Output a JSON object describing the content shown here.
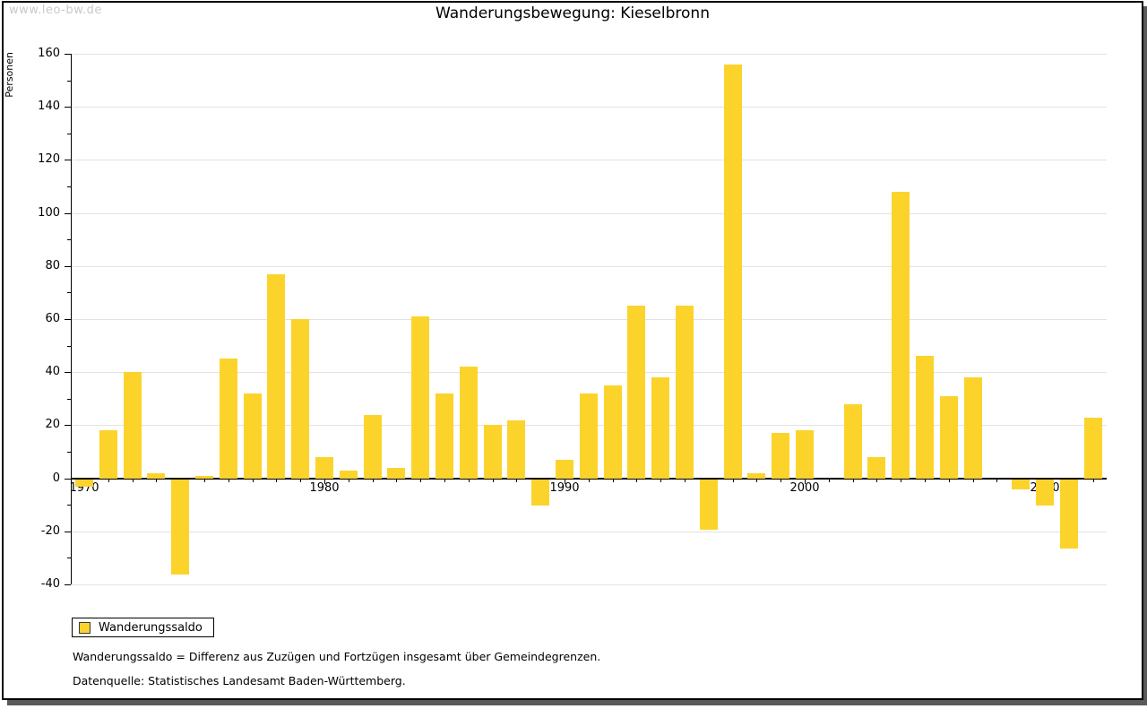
{
  "page": {
    "watermark": "www.leo-bw.de"
  },
  "chart_data": {
    "type": "bar",
    "title": "Wanderungsbewegung: Kieselbronn",
    "xlabel": "",
    "ylabel": "Personen",
    "series_name": "Wanderungssaldo",
    "x": [
      1970,
      1971,
      1972,
      1973,
      1974,
      1975,
      1976,
      1977,
      1978,
      1979,
      1980,
      1981,
      1982,
      1983,
      1984,
      1985,
      1986,
      1987,
      1988,
      1989,
      1990,
      1991,
      1992,
      1993,
      1994,
      1995,
      1996,
      1997,
      1998,
      1999,
      2000,
      2001,
      2002,
      2003,
      2004,
      2005,
      2006,
      2007,
      2008,
      2009,
      2010,
      2011,
      2012
    ],
    "values": [
      -3,
      18,
      40,
      2,
      -36,
      1,
      45,
      32,
      77,
      60,
      8,
      3,
      24,
      4,
      61,
      32,
      42,
      20,
      22,
      -10,
      7,
      32,
      35,
      65,
      38,
      65,
      -19,
      156,
      2,
      17,
      18,
      0,
      28,
      8,
      108,
      46,
      31,
      38,
      0,
      -4,
      -10,
      -26,
      23
    ],
    "ylim": [
      -40,
      160
    ],
    "ytick_step": 20,
    "ytick_minor_step": 10,
    "ytick_labels": [
      "-40",
      "-20",
      "0",
      "20",
      "40",
      "60",
      "80",
      "100",
      "120",
      "140",
      "160"
    ],
    "xtick_labels": [
      "1970",
      "1980",
      "1990",
      "2000",
      "2010"
    ],
    "grid": true,
    "bar_color": "#FCD32B",
    "gridline_color": "#e2e2e2",
    "legend_position": "bottom-left"
  },
  "legend": {
    "items": [
      {
        "label": "Wanderungssaldo",
        "swatch_color": "#FCD32B"
      }
    ]
  },
  "footnotes": [
    "Wanderungssaldo = Differenz aus Zuzügen und Fortzügen insgesamt über Gemeindegrenzen.",
    "Datenquelle: Statistisches Landesamt Baden-Württemberg."
  ]
}
